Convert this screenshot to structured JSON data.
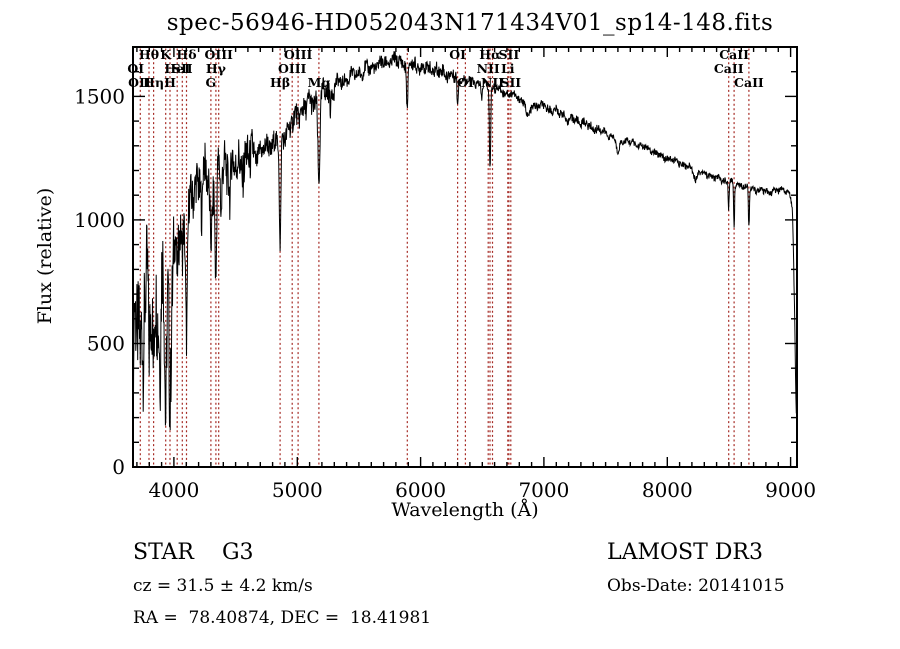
{
  "title": "spec-56946-HD052043N171434V01_sp14-148.fits",
  "footer": {
    "class_label": "STAR    G3",
    "cz": "cz = 31.5 ± 4.2 km/s",
    "radec": "RA =  78.40874, DEC =  18.41981",
    "survey": "LAMOST DR3",
    "obs_date": "Obs-Date: 20141015"
  },
  "colors": {
    "background": "#ffffff",
    "axis": "#000000",
    "spectrum": "#000000",
    "line_marker": "#a62b25",
    "text": "#000000"
  },
  "chart_data": {
    "type": "line",
    "title": "spec-56946-HD052043N171434V01_sp14-148.fits",
    "xlabel": "Wavelength (Å)",
    "ylabel": "Flux (relative)",
    "xlim": [
      3668,
      9052
    ],
    "ylim": [
      0,
      1700
    ],
    "x_ticks": [
      4000,
      5000,
      6000,
      7000,
      8000,
      9000
    ],
    "x_tick_labels": [
      "4000",
      "5000",
      "6000",
      "7000",
      "8000",
      "9000"
    ],
    "y_ticks": [
      0,
      500,
      1000,
      1500
    ],
    "y_tick_labels": [
      "0",
      "500",
      "1000",
      "1500"
    ],
    "x_minor_step": 100,
    "y_minor_step": 100,
    "grid": false,
    "legend": "none",
    "sample_step": 3,
    "continuum_points": [
      [
        3670,
        0
      ],
      [
        3673,
        380
      ],
      [
        3677,
        620
      ],
      [
        3700,
        640
      ],
      [
        3730,
        580
      ],
      [
        3760,
        660
      ],
      [
        3790,
        720
      ],
      [
        3820,
        690
      ],
      [
        3850,
        720
      ],
      [
        3880,
        640
      ],
      [
        3910,
        760
      ],
      [
        3940,
        720
      ],
      [
        3970,
        700
      ],
      [
        4000,
        860
      ],
      [
        4040,
        930
      ],
      [
        4080,
        990
      ],
      [
        4120,
        1030
      ],
      [
        4160,
        1110
      ],
      [
        4200,
        1165
      ],
      [
        4240,
        1195
      ],
      [
        4280,
        1175
      ],
      [
        4320,
        1165
      ],
      [
        4360,
        1185
      ],
      [
        4400,
        1205
      ],
      [
        4450,
        1225
      ],
      [
        4500,
        1215
      ],
      [
        4550,
        1225
      ],
      [
        4600,
        1245
      ],
      [
        4650,
        1255
      ],
      [
        4700,
        1275
      ],
      [
        4760,
        1295
      ],
      [
        4820,
        1315
      ],
      [
        4880,
        1335
      ],
      [
        4940,
        1375
      ],
      [
        5000,
        1425
      ],
      [
        5060,
        1455
      ],
      [
        5120,
        1475
      ],
      [
        5180,
        1490
      ],
      [
        5240,
        1525
      ],
      [
        5300,
        1545
      ],
      [
        5380,
        1565
      ],
      [
        5460,
        1585
      ],
      [
        5540,
        1605
      ],
      [
        5620,
        1620
      ],
      [
        5700,
        1635
      ],
      [
        5780,
        1645
      ],
      [
        5860,
        1638
      ],
      [
        5940,
        1628
      ],
      [
        6020,
        1618
      ],
      [
        6100,
        1608
      ],
      [
        6180,
        1598
      ],
      [
        6260,
        1585
      ],
      [
        6340,
        1570
      ],
      [
        6420,
        1558
      ],
      [
        6500,
        1548
      ],
      [
        6580,
        1538
      ],
      [
        6660,
        1522
      ],
      [
        6740,
        1508
      ],
      [
        6820,
        1485
      ],
      [
        6880,
        1458
      ],
      [
        6940,
        1462
      ],
      [
        7000,
        1458
      ],
      [
        7080,
        1442
      ],
      [
        7160,
        1428
      ],
      [
        7240,
        1408
      ],
      [
        7320,
        1392
      ],
      [
        7400,
        1372
      ],
      [
        7480,
        1358
      ],
      [
        7560,
        1332
      ],
      [
        7640,
        1322
      ],
      [
        7720,
        1312
      ],
      [
        7800,
        1297
      ],
      [
        7880,
        1277
      ],
      [
        7960,
        1257
      ],
      [
        8040,
        1242
      ],
      [
        8120,
        1227
      ],
      [
        8200,
        1207
      ],
      [
        8280,
        1192
      ],
      [
        8360,
        1177
      ],
      [
        8440,
        1162
      ],
      [
        8520,
        1152
      ],
      [
        8600,
        1142
      ],
      [
        8680,
        1127
      ],
      [
        8760,
        1117
      ],
      [
        8840,
        1112
      ],
      [
        8900,
        1117
      ],
      [
        8940,
        1132
      ],
      [
        8970,
        1112
      ],
      [
        9000,
        1092
      ],
      [
        9015,
        1050
      ],
      [
        9030,
        700
      ],
      [
        9042,
        300
      ],
      [
        9048,
        160
      ]
    ],
    "absorption_lines": [
      [
        3727,
        130,
        5
      ],
      [
        3750,
        150,
        4
      ],
      [
        3798,
        270,
        6
      ],
      [
        3835,
        300,
        6
      ],
      [
        3889,
        340,
        6
      ],
      [
        3933,
        470,
        7
      ],
      [
        3968,
        430,
        7
      ],
      [
        4026,
        150,
        5
      ],
      [
        4068,
        130,
        5
      ],
      [
        4102,
        440,
        7
      ],
      [
        4227,
        170,
        5
      ],
      [
        4300,
        270,
        9
      ],
      [
        4340,
        420,
        6
      ],
      [
        4383,
        170,
        5
      ],
      [
        4455,
        120,
        5
      ],
      [
        4861,
        480,
        6
      ],
      [
        5175,
        330,
        8
      ],
      [
        5270,
        90,
        6
      ],
      [
        5892,
        200,
        6
      ],
      [
        6300,
        125,
        5
      ],
      [
        6495,
        60,
        5
      ],
      [
        6563,
        335,
        5
      ],
      [
        6870,
        55,
        12
      ],
      [
        7190,
        30,
        10
      ],
      [
        7600,
        55,
        12
      ],
      [
        8230,
        40,
        10
      ],
      [
        8498,
        105,
        4
      ],
      [
        8542,
        175,
        4
      ],
      [
        8662,
        155,
        4
      ]
    ],
    "noise_regions": [
      [
        3670,
        4000,
        225
      ],
      [
        4000,
        4650,
        110
      ],
      [
        4650,
        5300,
        55
      ],
      [
        5300,
        6300,
        33
      ],
      [
        6300,
        7500,
        20
      ],
      [
        7500,
        9052,
        15
      ]
    ],
    "line_markers": [
      3727,
      3798,
      3835,
      3933,
      3968,
      4026,
      4068,
      4102,
      4300,
      4340,
      4363,
      4861,
      4959,
      5007,
      5175,
      5892,
      6300,
      6363,
      6548,
      6563,
      6583,
      6707,
      6716,
      6731,
      8498,
      8542,
      8662
    ],
    "label_rows": [
      {
        "y": 59,
        "labels": [
          {
            "text": "Hθ",
            "wl": 3798
          },
          {
            "text": "K",
            "wl": 3933
          },
          {
            "text": "Hδ",
            "wl": 4102
          },
          {
            "text": "OIII",
            "wl": 4363
          },
          {
            "text": "OIII",
            "wl": 5007
          },
          {
            "text": "OI",
            "wl": 6300
          },
          {
            "text": "Hα",
            "wl": 6563
          },
          {
            "text": "SII",
            "wl": 6716
          },
          {
            "text": "CaII",
            "wl": 8542
          }
        ]
      },
      {
        "y": 73,
        "labels": [
          {
            "text": "OI",
            "wl": 3690
          },
          {
            "text": "HeI",
            "wl": 4026
          },
          {
            "text": "SII",
            "wl": 4068
          },
          {
            "text": "Hγ",
            "wl": 4340
          },
          {
            "text": "OIII",
            "wl": 4959
          },
          {
            "text": "NII",
            "wl": 6548
          },
          {
            "text": "Li",
            "wl": 6707
          },
          {
            "text": "CaII",
            "wl": 8498
          }
        ]
      },
      {
        "y": 87,
        "labels": [
          {
            "text": "OII",
            "wl": 3720
          },
          {
            "text": "Hη",
            "wl": 3835
          },
          {
            "text": "H",
            "wl": 3968
          },
          {
            "text": "G",
            "wl": 4300
          },
          {
            "text": "Hβ",
            "wl": 4861
          },
          {
            "text": "Mg",
            "wl": 5175
          },
          {
            "text": "OI",
            "wl": 6363
          },
          {
            "text": "NII",
            "wl": 6583
          },
          {
            "text": "SII",
            "wl": 6731
          },
          {
            "text": "CaII",
            "wl": 8662
          }
        ]
      }
    ]
  }
}
